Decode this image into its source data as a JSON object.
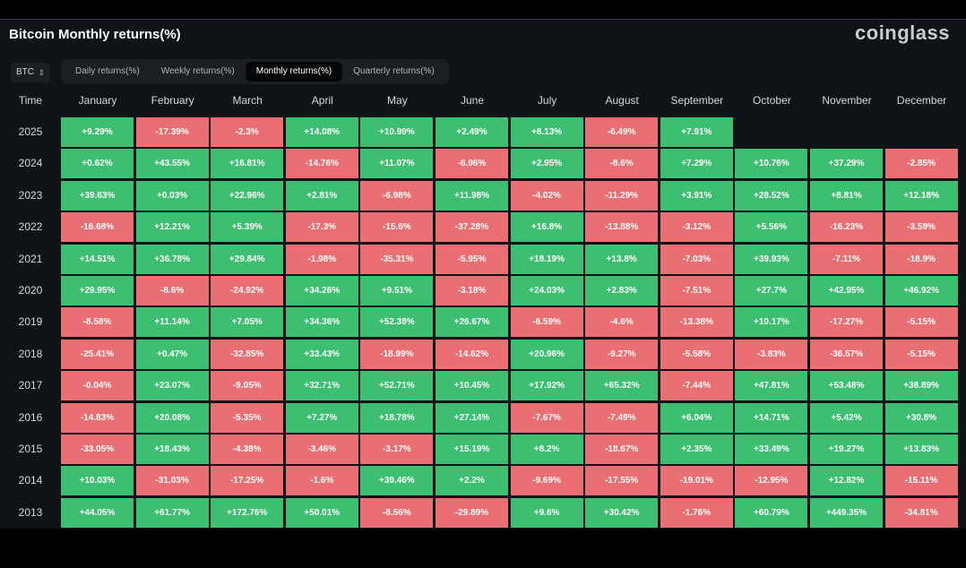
{
  "title": "Bitcoin Monthly returns(%)",
  "logo": "coinglass",
  "asset": {
    "value": "BTC",
    "icon": "chevron-updown-icon"
  },
  "tabs": [
    {
      "label": "Daily returns(%)",
      "active": false
    },
    {
      "label": "Weekly returns(%)",
      "active": false
    },
    {
      "label": "Monthly returns(%)",
      "active": true
    },
    {
      "label": "Quarterly returns(%)",
      "active": false
    }
  ],
  "colors": {
    "positive": "#3dbf72",
    "negative": "#ea6f72",
    "background": "#0f1216"
  },
  "table": {
    "corner": "Time",
    "columns": [
      "January",
      "February",
      "March",
      "April",
      "May",
      "June",
      "July",
      "August",
      "September",
      "October",
      "November",
      "December"
    ],
    "rows": [
      {
        "year": "2025",
        "values": [
          "+9.29%",
          "-17.39%",
          "-2.3%",
          "+14.08%",
          "+10.99%",
          "+2.49%",
          "+8.13%",
          "-6.49%",
          "+7.91%",
          "",
          "",
          ""
        ]
      },
      {
        "year": "2024",
        "values": [
          "+0.62%",
          "+43.55%",
          "+16.81%",
          "-14.76%",
          "+11.07%",
          "-6.96%",
          "+2.95%",
          "-8.6%",
          "+7.29%",
          "+10.76%",
          "+37.29%",
          "-2.85%"
        ]
      },
      {
        "year": "2023",
        "values": [
          "+39.63%",
          "+0.03%",
          "+22.96%",
          "+2.81%",
          "-6.98%",
          "+11.98%",
          "-4.02%",
          "-11.29%",
          "+3.91%",
          "+28.52%",
          "+8.81%",
          "+12.18%"
        ]
      },
      {
        "year": "2022",
        "values": [
          "-16.68%",
          "+12.21%",
          "+5.39%",
          "-17.3%",
          "-15.6%",
          "-37.28%",
          "+16.8%",
          "-13.88%",
          "-3.12%",
          "+5.56%",
          "-16.23%",
          "-3.59%"
        ]
      },
      {
        "year": "2021",
        "values": [
          "+14.51%",
          "+36.78%",
          "+29.84%",
          "-1.98%",
          "-35.31%",
          "-5.95%",
          "+18.19%",
          "+13.8%",
          "-7.03%",
          "+39.93%",
          "-7.11%",
          "-18.9%"
        ]
      },
      {
        "year": "2020",
        "values": [
          "+29.95%",
          "-8.6%",
          "-24.92%",
          "+34.26%",
          "+9.51%",
          "-3.18%",
          "+24.03%",
          "+2.83%",
          "-7.51%",
          "+27.7%",
          "+42.95%",
          "+46.92%"
        ]
      },
      {
        "year": "2019",
        "values": [
          "-8.58%",
          "+11.14%",
          "+7.05%",
          "+34.36%",
          "+52.38%",
          "+26.67%",
          "-6.59%",
          "-4.6%",
          "-13.38%",
          "+10.17%",
          "-17.27%",
          "-5.15%"
        ]
      },
      {
        "year": "2018",
        "values": [
          "-25.41%",
          "+0.47%",
          "-32.85%",
          "+33.43%",
          "-18.99%",
          "-14.62%",
          "+20.96%",
          "-9.27%",
          "-5.58%",
          "-3.83%",
          "-36.57%",
          "-5.15%"
        ]
      },
      {
        "year": "2017",
        "values": [
          "-0.04%",
          "+23.07%",
          "-9.05%",
          "+32.71%",
          "+52.71%",
          "+10.45%",
          "+17.92%",
          "+65.32%",
          "-7.44%",
          "+47.81%",
          "+53.48%",
          "+38.89%"
        ]
      },
      {
        "year": "2016",
        "values": [
          "-14.83%",
          "+20.08%",
          "-5.35%",
          "+7.27%",
          "+18.78%",
          "+27.14%",
          "-7.67%",
          "-7.49%",
          "+6.04%",
          "+14.71%",
          "+5.42%",
          "+30.8%"
        ]
      },
      {
        "year": "2015",
        "values": [
          "-33.05%",
          "+18.43%",
          "-4.38%",
          "-3.46%",
          "-3.17%",
          "+15.19%",
          "+8.2%",
          "-18.67%",
          "+2.35%",
          "+33.49%",
          "+19.27%",
          "+13.83%"
        ]
      },
      {
        "year": "2014",
        "values": [
          "+10.03%",
          "-31.03%",
          "-17.25%",
          "-1.6%",
          "+39.46%",
          "+2.2%",
          "-9.69%",
          "-17.55%",
          "-19.01%",
          "-12.95%",
          "+12.82%",
          "-15.11%"
        ]
      },
      {
        "year": "2013",
        "values": [
          "+44.05%",
          "+61.77%",
          "+172.76%",
          "+50.01%",
          "-8.56%",
          "-29.89%",
          "+9.6%",
          "+30.42%",
          "-1.76%",
          "+60.79%",
          "+449.35%",
          "-34.81%"
        ]
      }
    ]
  }
}
